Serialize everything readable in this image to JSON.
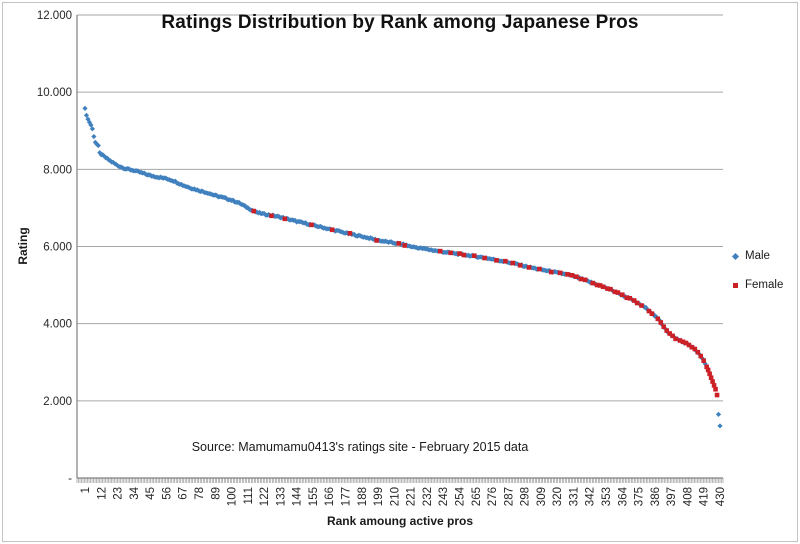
{
  "chart_data": {
    "type": "scatter",
    "title": "Ratings Distribution by Rank among Japanese Pros",
    "xlabel": "Rank amoung active pros",
    "ylabel": "Rating",
    "source_note": "Source: Mamumamu0413's ratings site - February 2015 data",
    "x_range": [
      1,
      430
    ],
    "y_range": [
      0,
      12000
    ],
    "n_points": 430,
    "grid": "horizontal-only",
    "legend_position": "right",
    "x_ticks": [
      1,
      12,
      23,
      34,
      45,
      56,
      67,
      78,
      89,
      100,
      111,
      122,
      133,
      144,
      155,
      166,
      177,
      188,
      199,
      210,
      221,
      232,
      243,
      254,
      265,
      276,
      287,
      298,
      309,
      320,
      331,
      342,
      353,
      364,
      375,
      386,
      397,
      408,
      419,
      430
    ],
    "y_ticks": [
      {
        "value": 12000,
        "label": "12.000"
      },
      {
        "value": 10000,
        "label": "10.000"
      },
      {
        "value": 8000,
        "label": "8.000"
      },
      {
        "value": 6000,
        "label": "6.000"
      },
      {
        "value": 4000,
        "label": "4.000"
      },
      {
        "value": 2000,
        "label": "2.000"
      },
      {
        "value": 0,
        "label": "-"
      }
    ],
    "colors": {
      "gridline": "#a6a6a6",
      "axis": "#808080",
      "tick_text": "#262626"
    },
    "series": [
      {
        "name": "Male",
        "marker": "diamond",
        "color": "#4081be",
        "description": "Rating vs rank curve; all ranks 1-430 except female ranks",
        "anchor_points": [
          [
            1,
            9580
          ],
          [
            2,
            9400
          ],
          [
            3,
            9300
          ],
          [
            4,
            9220
          ],
          [
            5,
            9150
          ],
          [
            6,
            9050
          ],
          [
            7,
            8850
          ],
          [
            8,
            8700
          ],
          [
            10,
            8600
          ],
          [
            11,
            8420
          ],
          [
            14,
            8330
          ],
          [
            18,
            8220
          ],
          [
            23,
            8100
          ],
          [
            28,
            8020
          ],
          [
            34,
            7970
          ],
          [
            40,
            7900
          ],
          [
            45,
            7840
          ],
          [
            50,
            7800
          ],
          [
            56,
            7760
          ],
          [
            61,
            7700
          ],
          [
            67,
            7590
          ],
          [
            73,
            7510
          ],
          [
            78,
            7450
          ],
          [
            84,
            7390
          ],
          [
            89,
            7320
          ],
          [
            95,
            7260
          ],
          [
            100,
            7200
          ],
          [
            105,
            7130
          ],
          [
            111,
            7000
          ],
          [
            114,
            6940
          ],
          [
            117,
            6880
          ],
          [
            122,
            6840
          ],
          [
            128,
            6800
          ],
          [
            133,
            6760
          ],
          [
            139,
            6700
          ],
          [
            144,
            6650
          ],
          [
            150,
            6600
          ],
          [
            155,
            6550
          ],
          [
            161,
            6500
          ],
          [
            166,
            6450
          ],
          [
            172,
            6400
          ],
          [
            177,
            6350
          ],
          [
            183,
            6300
          ],
          [
            188,
            6260
          ],
          [
            194,
            6210
          ],
          [
            199,
            6160
          ],
          [
            205,
            6120
          ],
          [
            210,
            6090
          ],
          [
            216,
            6050
          ],
          [
            221,
            6000
          ],
          [
            227,
            5960
          ],
          [
            232,
            5930
          ],
          [
            238,
            5890
          ],
          [
            243,
            5860
          ],
          [
            249,
            5830
          ],
          [
            254,
            5800
          ],
          [
            260,
            5770
          ],
          [
            265,
            5740
          ],
          [
            271,
            5710
          ],
          [
            276,
            5670
          ],
          [
            282,
            5630
          ],
          [
            287,
            5590
          ],
          [
            293,
            5540
          ],
          [
            298,
            5490
          ],
          [
            304,
            5440
          ],
          [
            309,
            5400
          ],
          [
            315,
            5360
          ],
          [
            320,
            5320
          ],
          [
            326,
            5280
          ],
          [
            331,
            5230
          ],
          [
            337,
            5150
          ],
          [
            342,
            5080
          ],
          [
            348,
            5000
          ],
          [
            353,
            4930
          ],
          [
            359,
            4830
          ],
          [
            364,
            4740
          ],
          [
            370,
            4630
          ],
          [
            375,
            4520
          ],
          [
            381,
            4380
          ],
          [
            386,
            4200
          ],
          [
            389,
            4080
          ],
          [
            391,
            3980
          ],
          [
            393,
            3880
          ],
          [
            395,
            3780
          ],
          [
            397,
            3700
          ],
          [
            400,
            3620
          ],
          [
            403,
            3560
          ],
          [
            406,
            3510
          ],
          [
            409,
            3450
          ],
          [
            411,
            3400
          ],
          [
            413,
            3330
          ],
          [
            415,
            3260
          ],
          [
            417,
            3160
          ],
          [
            419,
            3040
          ],
          [
            420,
            2960
          ],
          [
            421,
            2880
          ],
          [
            422,
            2800
          ],
          [
            423,
            2700
          ],
          [
            424,
            2600
          ],
          [
            425,
            2500
          ],
          [
            426,
            2400
          ],
          [
            427,
            2300
          ],
          [
            428,
            2150
          ],
          [
            429,
            1650
          ],
          [
            430,
            1350
          ]
        ]
      },
      {
        "name": "Female",
        "marker": "square",
        "color": "#cb2026",
        "description": "Female pros lie on the same rating curve at these ranks",
        "ranks": [
          115,
          127,
          136,
          154,
          168,
          180,
          198,
          213,
          217,
          241,
          248,
          254,
          257,
          264,
          271,
          279,
          285,
          290,
          295,
          301,
          308,
          316,
          322,
          327,
          330,
          333,
          336,
          339,
          344,
          347,
          349,
          351,
          354,
          356,
          359,
          361,
          364,
          367,
          369,
          372,
          374,
          377,
          382,
          384,
          388,
          390,
          392,
          394,
          396,
          398,
          400,
          403,
          405,
          407,
          409,
          411,
          413,
          415,
          417,
          419,
          421,
          422,
          423,
          424,
          425,
          426,
          427,
          428
        ]
      }
    ]
  }
}
